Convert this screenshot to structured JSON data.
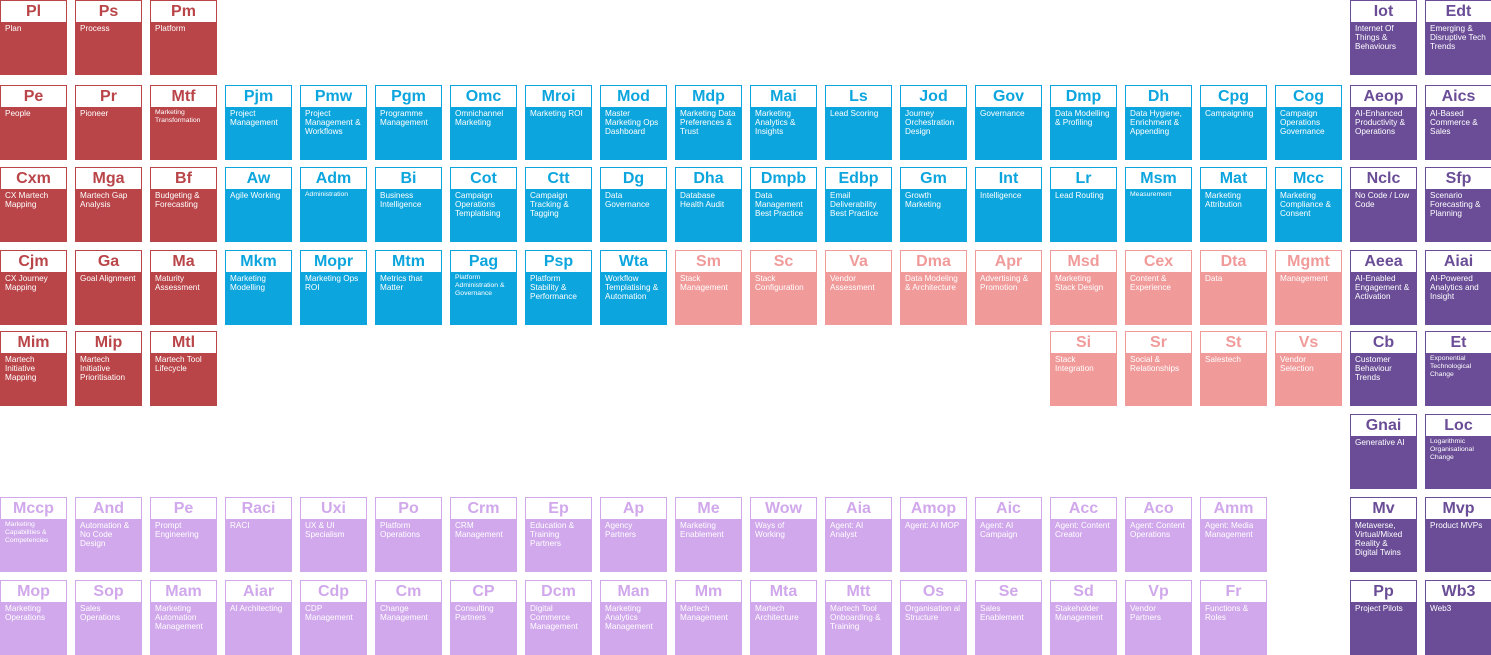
{
  "colors": {
    "strategy": "#B94549",
    "operations": "#0DA5DD",
    "stack": "#F19A9A",
    "future": "#6A4D96",
    "enablement": "#D0A8EB"
  },
  "elements": [
    {
      "sym": "Pl",
      "label": "Plan",
      "group": "strategy",
      "col": 0,
      "row": 0
    },
    {
      "sym": "Ps",
      "label": "Process",
      "group": "strategy",
      "col": 1,
      "row": 0
    },
    {
      "sym": "Pm",
      "label": "Platform",
      "group": "strategy",
      "col": 2,
      "row": 0
    },
    {
      "sym": "Iot",
      "label": "Internet Of Things & Behaviours",
      "group": "future",
      "col": 18,
      "row": 0
    },
    {
      "sym": "Edt",
      "label": "Emerging & Disruptive Tech Trends",
      "group": "future",
      "col": 19,
      "row": 0
    },
    {
      "sym": "Pe",
      "label": "People",
      "group": "strategy",
      "col": 0,
      "row": 1
    },
    {
      "sym": "Pr",
      "label": "Pioneer",
      "group": "strategy",
      "col": 1,
      "row": 1
    },
    {
      "sym": "Mtf",
      "label": "Marketing Transformation",
      "group": "strategy",
      "col": 2,
      "row": 1,
      "tiny": true
    },
    {
      "sym": "Pjm",
      "label": "Project Management",
      "group": "operations",
      "col": 3,
      "row": 1
    },
    {
      "sym": "Pmw",
      "label": "Project Management & Workflows",
      "group": "operations",
      "col": 4,
      "row": 1
    },
    {
      "sym": "Pgm",
      "label": "Programme Management",
      "group": "operations",
      "col": 5,
      "row": 1
    },
    {
      "sym": "Omc",
      "label": "Omnichannel Marketing",
      "group": "operations",
      "col": 6,
      "row": 1
    },
    {
      "sym": "Mroi",
      "label": "Marketing ROI",
      "group": "operations",
      "col": 7,
      "row": 1
    },
    {
      "sym": "Mod",
      "label": "Master Marketing Ops Dashboard",
      "group": "operations",
      "col": 8,
      "row": 1
    },
    {
      "sym": "Mdp",
      "label": "Marketing Data Preferences & Trust",
      "group": "operations",
      "col": 9,
      "row": 1
    },
    {
      "sym": "Mai",
      "label": "Marketing Analytics & Insights",
      "group": "operations",
      "col": 10,
      "row": 1
    },
    {
      "sym": "Ls",
      "label": "Lead Scoring",
      "group": "operations",
      "col": 11,
      "row": 1
    },
    {
      "sym": "Jod",
      "label": "Journey Orchestration Design",
      "group": "operations",
      "col": 12,
      "row": 1
    },
    {
      "sym": "Gov",
      "label": "Governance",
      "group": "operations",
      "col": 13,
      "row": 1
    },
    {
      "sym": "Dmp",
      "label": "Data Modelling & Profiling",
      "group": "operations",
      "col": 14,
      "row": 1
    },
    {
      "sym": "Dh",
      "label": "Data Hygiene, Enrichment & Appending",
      "group": "operations",
      "col": 15,
      "row": 1
    },
    {
      "sym": "Cpg",
      "label": "Campaigning",
      "group": "operations",
      "col": 16,
      "row": 1
    },
    {
      "sym": "Cog",
      "label": "Campaign Operations Governance",
      "group": "operations",
      "col": 17,
      "row": 1
    },
    {
      "sym": "Aeop",
      "label": "AI-Enhanced Productivity & Operations",
      "group": "future",
      "col": 18,
      "row": 1
    },
    {
      "sym": "Aics",
      "label": "AI-Based Commerce & Sales",
      "group": "future",
      "col": 19,
      "row": 1
    },
    {
      "sym": "Cxm",
      "label": "CX Martech Mapping",
      "group": "strategy",
      "col": 0,
      "row": 2
    },
    {
      "sym": "Mga",
      "label": "Martech Gap Analysis",
      "group": "strategy",
      "col": 1,
      "row": 2
    },
    {
      "sym": "Bf",
      "label": "Budgeting & Forecasting",
      "group": "strategy",
      "col": 2,
      "row": 2
    },
    {
      "sym": "Aw",
      "label": "Agile Working",
      "group": "operations",
      "col": 3,
      "row": 2
    },
    {
      "sym": "Adm",
      "label": "Administration",
      "group": "operations",
      "col": 4,
      "row": 2,
      "tiny": true
    },
    {
      "sym": "Bi",
      "label": "Business Intelligence",
      "group": "operations",
      "col": 5,
      "row": 2
    },
    {
      "sym": "Cot",
      "label": "Campaign Operations Templatising",
      "group": "operations",
      "col": 6,
      "row": 2
    },
    {
      "sym": "Ctt",
      "label": "Campaign Tracking & Tagging",
      "group": "operations",
      "col": 7,
      "row": 2
    },
    {
      "sym": "Dg",
      "label": "Data Governance",
      "group": "operations",
      "col": 8,
      "row": 2
    },
    {
      "sym": "Dha",
      "label": "Database Health Audit",
      "group": "operations",
      "col": 9,
      "row": 2
    },
    {
      "sym": "Dmpb",
      "label": "Data Management Best Practice",
      "group": "operations",
      "col": 10,
      "row": 2
    },
    {
      "sym": "Edbp",
      "label": "Email Deliverability Best Practice",
      "group": "operations",
      "col": 11,
      "row": 2
    },
    {
      "sym": "Gm",
      "label": "Growth Marketing",
      "group": "operations",
      "col": 12,
      "row": 2
    },
    {
      "sym": "Int",
      "label": "Intelligence",
      "group": "operations",
      "col": 13,
      "row": 2
    },
    {
      "sym": "Lr",
      "label": "Lead Routing",
      "group": "operations",
      "col": 14,
      "row": 2
    },
    {
      "sym": "Msm",
      "label": "Measurement",
      "group": "operations",
      "col": 15,
      "row": 2,
      "tiny": true
    },
    {
      "sym": "Mat",
      "label": "Marketing Attribution",
      "group": "operations",
      "col": 16,
      "row": 2
    },
    {
      "sym": "Mcc",
      "label": "Marketing Compliance & Consent",
      "group": "operations",
      "col": 17,
      "row": 2
    },
    {
      "sym": "Nclc",
      "label": "No Code / Low Code",
      "group": "future",
      "col": 18,
      "row": 2
    },
    {
      "sym": "Sfp",
      "label": "Scenario Forecasting & Planning",
      "group": "future",
      "col": 19,
      "row": 2
    },
    {
      "sym": "Cjm",
      "label": "CX Journey Mapping",
      "group": "strategy",
      "col": 0,
      "row": 3
    },
    {
      "sym": "Ga",
      "label": "Goal Alignment",
      "group": "strategy",
      "col": 1,
      "row": 3
    },
    {
      "sym": "Ma",
      "label": "Maturity Assessment",
      "group": "strategy",
      "col": 2,
      "row": 3
    },
    {
      "sym": "Mkm",
      "label": "Marketing Modelling",
      "group": "operations",
      "col": 3,
      "row": 3
    },
    {
      "sym": "Mopr",
      "label": "Marketing Ops ROI",
      "group": "operations",
      "col": 4,
      "row": 3
    },
    {
      "sym": "Mtm",
      "label": "Metrics that Matter",
      "group": "operations",
      "col": 5,
      "row": 3
    },
    {
      "sym": "Pag",
      "label": "Platform Administration & Governance",
      "group": "operations",
      "col": 6,
      "row": 3,
      "tiny": true
    },
    {
      "sym": "Psp",
      "label": "Platform Stability & Performance",
      "group": "operations",
      "col": 7,
      "row": 3
    },
    {
      "sym": "Wta",
      "label": "Workflow Templatising & Automation",
      "group": "operations",
      "col": 8,
      "row": 3
    },
    {
      "sym": "Sm",
      "label": "Stack Management",
      "group": "stack",
      "col": 9,
      "row": 3
    },
    {
      "sym": "Sc",
      "label": "Stack Configuration",
      "group": "stack",
      "col": 10,
      "row": 3
    },
    {
      "sym": "Va",
      "label": "Vendor Assessment",
      "group": "stack",
      "col": 11,
      "row": 3
    },
    {
      "sym": "Dma",
      "label": "Data Modeling & Architecture",
      "group": "stack",
      "col": 12,
      "row": 3
    },
    {
      "sym": "Apr",
      "label": "Advertising & Promotion",
      "group": "stack",
      "col": 13,
      "row": 3
    },
    {
      "sym": "Msd",
      "label": "Marketing Stack Design",
      "group": "stack",
      "col": 14,
      "row": 3
    },
    {
      "sym": "Cex",
      "label": "Content & Experience",
      "group": "stack",
      "col": 15,
      "row": 3
    },
    {
      "sym": "Dta",
      "label": "Data",
      "group": "stack",
      "col": 16,
      "row": 3
    },
    {
      "sym": "Mgmt",
      "label": "Management",
      "group": "stack",
      "col": 17,
      "row": 3
    },
    {
      "sym": "Aeea",
      "label": "AI-Enabled Engagement & Activation",
      "group": "future",
      "col": 18,
      "row": 3
    },
    {
      "sym": "Aiai",
      "label": "AI-Powered Analytics and Insight",
      "group": "future",
      "col": 19,
      "row": 3
    },
    {
      "sym": "Mim",
      "label": "Martech Initiative Mapping",
      "group": "strategy",
      "col": 0,
      "row": 4
    },
    {
      "sym": "Mip",
      "label": "Martech Initiative Prioritisation",
      "group": "strategy",
      "col": 1,
      "row": 4
    },
    {
      "sym": "Mtl",
      "label": "Martech Tool Lifecycle",
      "group": "strategy",
      "col": 2,
      "row": 4
    },
    {
      "sym": "Si",
      "label": "Stack Integration",
      "group": "stack",
      "col": 14,
      "row": 4
    },
    {
      "sym": "Sr",
      "label": "Social & Relationships",
      "group": "stack",
      "col": 15,
      "row": 4
    },
    {
      "sym": "St",
      "label": "Salestech",
      "group": "stack",
      "col": 16,
      "row": 4
    },
    {
      "sym": "Vs",
      "label": "Vendor Selection",
      "group": "stack",
      "col": 17,
      "row": 4
    },
    {
      "sym": "Cb",
      "label": "Customer Behaviour Trends",
      "group": "future",
      "col": 18,
      "row": 4
    },
    {
      "sym": "Et",
      "label": "Exponential Technological Change",
      "group": "future",
      "col": 19,
      "row": 4,
      "tiny": true
    },
    {
      "sym": "Gnai",
      "label": "Generative AI",
      "group": "future",
      "col": 18,
      "row": 5
    },
    {
      "sym": "Loc",
      "label": "Logarithmic Organisational Change",
      "group": "future",
      "col": 19,
      "row": 5,
      "tiny": true
    },
    {
      "sym": "Mccp",
      "label": "Marketing Capabilities & Competencies",
      "group": "enablement",
      "col": 0,
      "row": 6,
      "tiny": true
    },
    {
      "sym": "And",
      "label": "Automation & No Code Design",
      "group": "enablement",
      "col": 1,
      "row": 6
    },
    {
      "sym": "Pe",
      "label": "Prompt Engineering",
      "group": "enablement",
      "col": 2,
      "row": 6
    },
    {
      "sym": "Raci",
      "label": "RACI",
      "group": "enablement",
      "col": 3,
      "row": 6
    },
    {
      "sym": "Uxi",
      "label": "UX & UI Specialism",
      "group": "enablement",
      "col": 4,
      "row": 6
    },
    {
      "sym": "Po",
      "label": "Platform Operations",
      "group": "enablement",
      "col": 5,
      "row": 6
    },
    {
      "sym": "Crm",
      "label": "CRM Management",
      "group": "enablement",
      "col": 6,
      "row": 6
    },
    {
      "sym": "Ep",
      "label": "Education & Training Partners",
      "group": "enablement",
      "col": 7,
      "row": 6
    },
    {
      "sym": "Ap",
      "label": "Agency Partners",
      "group": "enablement",
      "col": 8,
      "row": 6
    },
    {
      "sym": "Me",
      "label": "Marketing Enablement",
      "group": "enablement",
      "col": 9,
      "row": 6
    },
    {
      "sym": "Wow",
      "label": "Ways of Working",
      "group": "enablement",
      "col": 10,
      "row": 6
    },
    {
      "sym": "Aia",
      "label": "Agent: AI Analyst",
      "group": "enablement",
      "col": 11,
      "row": 6
    },
    {
      "sym": "Amop",
      "label": "Agent: AI MOP",
      "group": "enablement",
      "col": 12,
      "row": 6
    },
    {
      "sym": "Aic",
      "label": "Agent: AI Campaign",
      "group": "enablement",
      "col": 13,
      "row": 6
    },
    {
      "sym": "Acc",
      "label": "Agent: Content Creator",
      "group": "enablement",
      "col": 14,
      "row": 6
    },
    {
      "sym": "Aco",
      "label": "Agent: Content Operations",
      "group": "enablement",
      "col": 15,
      "row": 6
    },
    {
      "sym": "Amm",
      "label": "Agent: Media Management",
      "group": "enablement",
      "col": 16,
      "row": 6
    },
    {
      "sym": "Mv",
      "label": "Metaverse, Virtual/Mixed Reality & Digital Twins",
      "group": "future",
      "col": 18,
      "row": 6
    },
    {
      "sym": "Mvp",
      "label": "Product MVPs",
      "group": "future",
      "col": 19,
      "row": 6
    },
    {
      "sym": "Mop",
      "label": "Marketing Operations",
      "group": "enablement",
      "col": 0,
      "row": 7
    },
    {
      "sym": "Sop",
      "label": "Sales Operations",
      "group": "enablement",
      "col": 1,
      "row": 7
    },
    {
      "sym": "Mam",
      "label": "Marketing Automation Management",
      "group": "enablement",
      "col": 2,
      "row": 7
    },
    {
      "sym": "Aiar",
      "label": "AI Architecting",
      "group": "enablement",
      "col": 3,
      "row": 7
    },
    {
      "sym": "Cdp",
      "label": "CDP Management",
      "group": "enablement",
      "col": 4,
      "row": 7
    },
    {
      "sym": "Cm",
      "label": "Change Management",
      "group": "enablement",
      "col": 5,
      "row": 7
    },
    {
      "sym": "CP",
      "label": "Consulting Partners",
      "group": "enablement",
      "col": 6,
      "row": 7
    },
    {
      "sym": "Dcm",
      "label": "Digital Commerce Management",
      "group": "enablement",
      "col": 7,
      "row": 7
    },
    {
      "sym": "Man",
      "label": "Marketing Analytics Management",
      "group": "enablement",
      "col": 8,
      "row": 7
    },
    {
      "sym": "Mm",
      "label": "Martech Management",
      "group": "enablement",
      "col": 9,
      "row": 7
    },
    {
      "sym": "Mta",
      "label": "Martech Architecture",
      "group": "enablement",
      "col": 10,
      "row": 7
    },
    {
      "sym": "Mtt",
      "label": "Martech Tool Onboarding & Training",
      "group": "enablement",
      "col": 11,
      "row": 7
    },
    {
      "sym": "Os",
      "label": "Organisation al Structure",
      "group": "enablement",
      "col": 12,
      "row": 7
    },
    {
      "sym": "Se",
      "label": "Sales Enablement",
      "group": "enablement",
      "col": 13,
      "row": 7
    },
    {
      "sym": "Sd",
      "label": "Stakeholder Management",
      "group": "enablement",
      "col": 14,
      "row": 7
    },
    {
      "sym": "Vp",
      "label": "Vendor Partners",
      "group": "enablement",
      "col": 15,
      "row": 7
    },
    {
      "sym": "Fr",
      "label": "Functions & Roles",
      "group": "enablement",
      "col": 16,
      "row": 7
    },
    {
      "sym": "Pp",
      "label": "Project Pilots",
      "group": "future",
      "col": 18,
      "row": 7
    },
    {
      "sym": "Wb3",
      "label": "Web3",
      "group": "future",
      "col": 19,
      "row": 7
    }
  ]
}
